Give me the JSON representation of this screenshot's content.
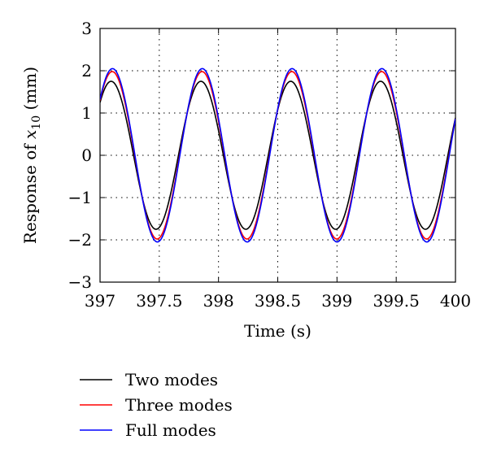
{
  "chart_data": {
    "type": "line",
    "xlabel": "Time (s)",
    "ylabel_prefix": "Response of ",
    "ylabel_var": "x",
    "ylabel_sub": "10",
    "ylabel_suffix": " (mm)",
    "xlim": [
      397,
      400
    ],
    "ylim": [
      -3,
      3
    ],
    "xticks": [
      397,
      397.5,
      398,
      398.5,
      399,
      399.5,
      400
    ],
    "xtick_labels": [
      "397",
      "397.5",
      "398",
      "398.5",
      "399",
      "399.5",
      "400"
    ],
    "yticks": [
      -3,
      -2,
      -1,
      0,
      1,
      2,
      3
    ],
    "ytick_labels": [
      "−3",
      "−2",
      "−1",
      "0",
      "1",
      "2",
      "3"
    ],
    "grid": true,
    "grid_style": "dotted",
    "legend_position": "below",
    "series": [
      {
        "name": "Two modes",
        "color": "#000000",
        "amplitude": 1.75,
        "period": 0.758,
        "phase_time": 397.0,
        "value_at_phase_time": 1.25,
        "peak_times": [
          397.11,
          397.86,
          398.62,
          399.38
        ],
        "trough_times": [
          397.49,
          398.24,
          399.0,
          399.76
        ]
      },
      {
        "name": "Three modes",
        "color": "#ff0000",
        "amplitude": 1.98,
        "period": 0.758,
        "phase_time": 397.0,
        "value_at_phase_time": 1.3,
        "peak_times": [
          397.11,
          397.86,
          398.62,
          399.38
        ],
        "trough_times": [
          397.49,
          398.24,
          399.0,
          399.76
        ]
      },
      {
        "name": "Full modes",
        "color": "#0000ff",
        "amplitude": 2.05,
        "period": 0.758,
        "phase_time": 397.0,
        "value_at_phase_time": 1.32,
        "peak_times": [
          397.11,
          397.86,
          398.62,
          399.38
        ],
        "trough_times": [
          397.49,
          398.24,
          399.0,
          399.76
        ]
      }
    ]
  }
}
